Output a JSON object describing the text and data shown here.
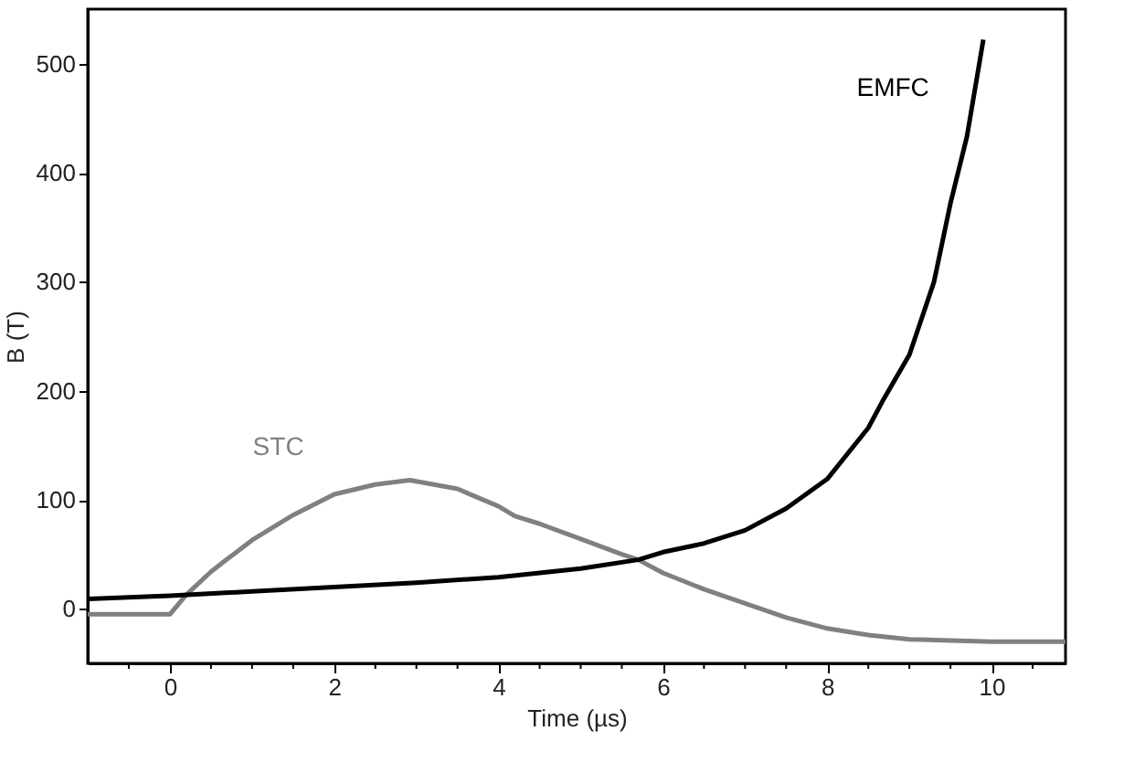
{
  "chart_data": {
    "type": "line",
    "xlabel": "Time (µs)",
    "ylabel": "B (T)",
    "xlim": [
      -1,
      10.9
    ],
    "ylim": [
      -50,
      550
    ],
    "xticks": [
      {
        "value": -0.5,
        "label": null
      },
      0,
      {
        "value": 0.5,
        "label": null
      },
      {
        "value": 1,
        "label": null
      },
      {
        "value": 1.5,
        "label": null
      },
      2,
      {
        "value": 2.5,
        "label": null
      },
      {
        "value": 3,
        "label": null
      },
      {
        "value": 3.5,
        "label": null
      },
      4,
      {
        "value": 4.5,
        "label": null
      },
      {
        "value": 5,
        "label": null
      },
      {
        "value": 5.5,
        "label": null
      },
      6,
      {
        "value": 6.5,
        "label": null
      },
      {
        "value": 7,
        "label": null
      },
      {
        "value": 7.5,
        "label": null
      },
      8,
      {
        "value": 8.5,
        "label": null
      },
      {
        "value": 9,
        "label": null
      },
      {
        "value": 9.5,
        "label": null
      },
      10,
      {
        "value": 10.5,
        "label": null
      }
    ],
    "yticks": [
      0,
      100,
      200,
      300,
      400,
      500
    ],
    "grid": false,
    "legend": false,
    "marker": "none",
    "line_style": "solid",
    "series": [
      {
        "name": "STC",
        "color": "#808080",
        "x": [
          -1,
          0,
          0.2,
          0.5,
          0.67,
          1,
          1.5,
          2,
          2.5,
          2.92,
          3.5,
          4,
          4.2,
          4.5,
          5,
          5.5,
          5.7,
          6,
          6.5,
          7,
          7.5,
          8,
          8.5,
          9,
          9.5,
          10,
          10.5,
          10.9
        ],
        "values": [
          -5,
          -5,
          13,
          34,
          44,
          63,
          86,
          105,
          114,
          118,
          110,
          94,
          85,
          78,
          64,
          50,
          45,
          33,
          18,
          5,
          -8,
          -18,
          -24,
          -28,
          -29,
          -30,
          -30,
          -30
        ]
      },
      {
        "name": "EMFC",
        "color": "#000000",
        "x": [
          -1,
          0,
          1,
          2,
          3,
          4,
          5,
          5.7,
          6,
          6.5,
          7,
          7.5,
          8,
          8.5,
          8.67,
          9,
          9.3,
          9.5,
          9.7,
          9.9
        ],
        "values": [
          9,
          12,
          16,
          20,
          24,
          29,
          37,
          45,
          52,
          60,
          72,
          92,
          119,
          166,
          190,
          233,
          300,
          372,
          433,
          522
        ]
      }
    ]
  }
}
